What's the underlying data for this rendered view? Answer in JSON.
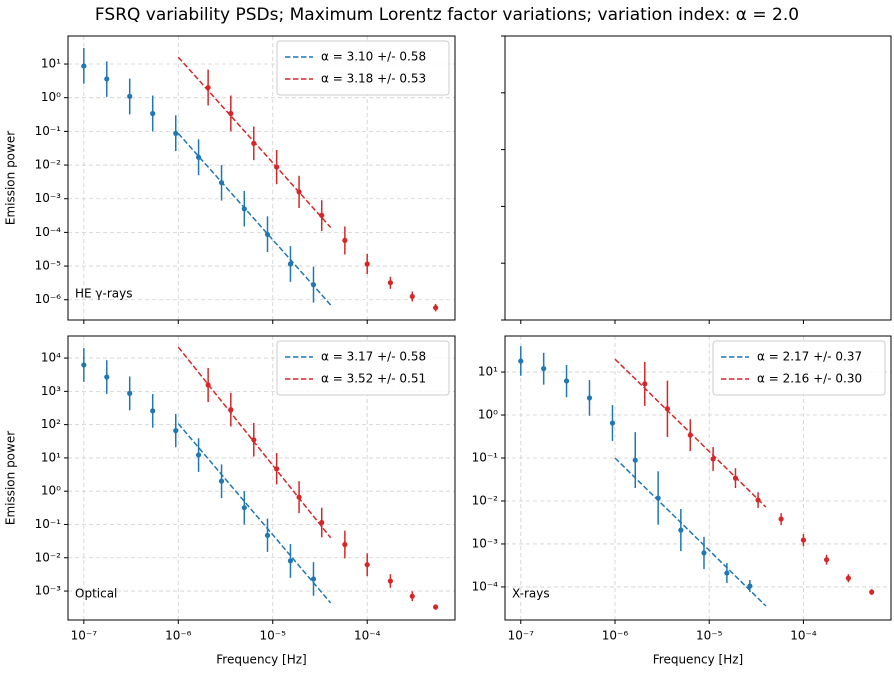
{
  "title": "FSRQ variability PSDs; Maximum Lorentz factor variations; variation index: α = 2.0",
  "chart_data": [
    {
      "type": "errorbar",
      "xscale": "log",
      "yscale": "log",
      "grid": true,
      "legend": "upper right",
      "ylabel": "Emission power",
      "annotation": "HE γ-rays",
      "xlim": [
        6.8e-08,
        0.00085
      ],
      "ylim": [
        2.5e-07,
        68
      ],
      "xticks": [
        1e-07,
        1e-06,
        1e-05,
        0.0001
      ],
      "yticks": [
        {
          "value": 1e-06,
          "label": "10⁻⁶"
        },
        {
          "value": 1e-05,
          "label": "10⁻⁵"
        },
        {
          "value": 0.0001,
          "label": "10⁻⁴"
        },
        {
          "value": 0.001,
          "label": "10⁻³"
        },
        {
          "value": 0.01,
          "label": "10⁻²"
        },
        {
          "value": 0.1,
          "label": "10⁻¹"
        },
        {
          "value": 1,
          "label": "10⁰"
        },
        {
          "value": 10,
          "label": "10¹"
        }
      ],
      "series": [
        {
          "name": "α = 3.10 +/- 0.58",
          "color": "#1f77b4",
          "x": [
            1e-06,
            4.1e-05
          ],
          "values": [
            0.087,
            7e-07
          ]
        },
        {
          "name": "α = 3.18 +/- 0.53",
          "color": "#d62728",
          "x": [
            1e-06,
            4.1e-05
          ],
          "values": [
            16,
            0.00014
          ]
        }
      ],
      "points": [
        {
          "color": "#1f77b4",
          "x": [
            1e-07,
            1.75e-07,
            3.06e-07,
            5.36e-07,
            9.4e-07,
            1.64e-06,
            2.87e-06,
            5e-06,
            8.8e-06,
            1.54e-05,
            2.7e-05
          ],
          "values": [
            8.7,
            3.6,
            1.1,
            0.34,
            0.087,
            0.017,
            0.003,
            0.0005,
            8.7e-05,
            1.15e-05,
            2.8e-06
          ],
          "lower": [
            2.6,
            1.06,
            0.32,
            0.1,
            0.026,
            0.005,
            0.00088,
            0.00015,
            2.6e-05,
            3.4e-06,
            8.2e-07
          ],
          "upper": [
            30,
            12,
            3.7,
            1.16,
            0.3,
            0.058,
            0.01,
            0.0017,
            0.0003,
            3.9e-05,
            9.5e-06
          ]
        },
        {
          "color": "#d62728",
          "x": [
            2.07e-06,
            3.6e-06,
            6.3e-06,
            1.1e-05,
            1.9e-05,
            3.3e-05,
            5.8e-05,
            0.0001,
            0.000176,
            0.0003,
            0.00053
          ],
          "values": [
            2.0,
            0.34,
            0.044,
            0.0087,
            0.0016,
            0.00032,
            5.8e-05,
            1.15e-05,
            3.2e-06,
            1.25e-06,
            5.8e-07
          ],
          "lower": [
            0.59,
            0.1,
            0.014,
            0.0027,
            0.00053,
            0.00011,
            2.2e-05,
            5.8e-06,
            2.1e-06,
            8.9e-07,
            4.5e-07
          ],
          "upper": [
            6.8,
            1.16,
            0.14,
            0.028,
            0.0048,
            0.0009,
            0.00015,
            2.3e-05,
            4.8e-06,
            1.75e-06,
            7.5e-07
          ]
        }
      ]
    },
    {
      "type": "empty",
      "xscale": "log",
      "yscale": "linear",
      "grid": false,
      "xlim": [
        6.8e-08,
        0.00085
      ],
      "ylim": [
        0,
        1
      ],
      "xticks": [
        1e-07,
        1e-06,
        1e-05,
        0.0001
      ],
      "yticks": [
        0,
        0.2,
        0.4,
        0.6,
        0.8,
        1
      ]
    },
    {
      "type": "errorbar",
      "xscale": "log",
      "yscale": "log",
      "grid": true,
      "legend": "upper right",
      "ylabel": "Emission power",
      "xlabel": "Frequency [Hz]",
      "annotation": "Optical",
      "xlim": [
        6.8e-08,
        0.00085
      ],
      "ylim": [
        0.000135,
        46000.0
      ],
      "xticks": [
        {
          "value": 1e-07,
          "label": "10⁻⁷"
        },
        {
          "value": 1e-06,
          "label": "10⁻⁶"
        },
        {
          "value": 1e-05,
          "label": "10⁻⁵"
        },
        {
          "value": 0.0001,
          "label": "10⁻⁴"
        }
      ],
      "yticks": [
        {
          "value": 0.001,
          "label": "10⁻³"
        },
        {
          "value": 0.01,
          "label": "10⁻²"
        },
        {
          "value": 0.1,
          "label": "10⁻¹"
        },
        {
          "value": 1,
          "label": "10⁰"
        },
        {
          "value": 10,
          "label": "10¹"
        },
        {
          "value": 100,
          "label": "10²"
        },
        {
          "value": 1000,
          "label": "10³"
        },
        {
          "value": 10000,
          "label": "10⁴"
        }
      ],
      "series": [
        {
          "name": "α = 3.17 +/- 0.58",
          "color": "#1f77b4",
          "x": [
            1e-06,
            4.1e-05
          ],
          "values": [
            107,
            0.00044
          ]
        },
        {
          "name": "α = 3.52 +/- 0.51",
          "color": "#d62728",
          "x": [
            1e-06,
            4.1e-05
          ],
          "values": [
            21400,
            0.04
          ]
        }
      ],
      "points": [
        {
          "color": "#1f77b4",
          "x": [
            1e-07,
            1.75e-07,
            3.06e-07,
            5.36e-07,
            9.4e-07,
            1.64e-06,
            2.87e-06,
            5e-06,
            8.8e-06,
            1.54e-05,
            2.7e-05
          ],
          "values": [
            6200,
            2700,
            870,
            260,
            66,
            12.3,
            2.0,
            0.32,
            0.047,
            0.0081,
            0.0023
          ],
          "lower": [
            1940,
            840,
            270,
            81,
            21,
            3.8,
            0.62,
            0.1,
            0.015,
            0.0025,
            0.00072
          ],
          "upper": [
            19800,
            8600,
            2800,
            830,
            210,
            39,
            6.4,
            1.0,
            0.15,
            0.026,
            0.0074
          ]
        },
        {
          "color": "#d62728",
          "x": [
            2.07e-06,
            3.6e-06,
            6.3e-06,
            1.1e-05,
            1.9e-05,
            3.3e-05,
            5.8e-05,
            0.0001,
            0.000176,
            0.0003,
            0.00053
          ],
          "values": [
            1550,
            280,
            35,
            4.7,
            0.66,
            0.115,
            0.025,
            0.0062,
            0.002,
            0.0007,
            0.00033
          ],
          "lower": [
            480,
            88,
            11,
            1.6,
            0.22,
            0.041,
            0.0096,
            0.0028,
            0.00125,
            0.0005,
            0.000275
          ],
          "upper": [
            5000,
            900,
            112,
            14,
            2.0,
            0.32,
            0.065,
            0.0136,
            0.0032,
            0.00098,
            0.0004
          ]
        }
      ]
    },
    {
      "type": "errorbar",
      "xscale": "log",
      "yscale": "log",
      "grid": true,
      "legend": "upper right",
      "xlabel": "Frequency [Hz]",
      "annotation": "X-rays",
      "xlim": [
        6.8e-08,
        0.00085
      ],
      "ylim": [
        1.7e-05,
        69
      ],
      "xticks": [
        {
          "value": 1e-07,
          "label": "10⁻⁷"
        },
        {
          "value": 1e-06,
          "label": "10⁻⁶"
        },
        {
          "value": 1e-05,
          "label": "10⁻⁵"
        },
        {
          "value": 0.0001,
          "label": "10⁻⁴"
        }
      ],
      "yticks": [
        {
          "value": 0.0001,
          "label": "10⁻⁴"
        },
        {
          "value": 0.001,
          "label": "10⁻³"
        },
        {
          "value": 0.01,
          "label": "10⁻²"
        },
        {
          "value": 0.1,
          "label": "10⁻¹"
        },
        {
          "value": 1,
          "label": "10⁰"
        },
        {
          "value": 10,
          "label": "10¹"
        }
      ],
      "series": [
        {
          "name": "α = 2.17 +/- 0.37",
          "color": "#1f77b4",
          "x": [
            1e-06,
            4e-05
          ],
          "values": [
            0.1,
            3.6e-05
          ]
        },
        {
          "name": "α = 2.16 +/- 0.30",
          "color": "#d62728",
          "x": [
            1e-06,
            4e-05
          ],
          "values": [
            20,
            0.0072
          ]
        }
      ],
      "points": [
        {
          "color": "#1f77b4",
          "x": [
            1e-07,
            1.75e-07,
            3.06e-07,
            5.36e-07,
            9.4e-07,
            1.64e-06,
            2.87e-06,
            5e-06,
            8.8e-06,
            1.54e-05,
            2.7e-05
          ],
          "values": [
            18,
            12,
            6.2,
            2.5,
            0.65,
            0.089,
            0.0117,
            0.0021,
            0.00062,
            0.00021,
            0.000105
          ],
          "lower": [
            8.2,
            5.1,
            2.6,
            0.96,
            0.25,
            0.02,
            0.0028,
            0.00068,
            0.00026,
            0.000124,
            7.6e-05
          ],
          "upper": [
            40,
            28,
            14.6,
            6.5,
            1.7,
            0.4,
            0.049,
            0.0065,
            0.00146,
            0.00036,
            0.000145
          ]
        },
        {
          "color": "#d62728",
          "x": [
            2.07e-06,
            3.6e-06,
            6.3e-06,
            1.1e-05,
            1.9e-05,
            3.3e-05,
            5.8e-05,
            0.0001,
            0.000176,
            0.0003,
            0.00053
          ],
          "values": [
            5.3,
            1.4,
            0.34,
            0.095,
            0.034,
            0.0105,
            0.0038,
            0.00123,
            0.00043,
            0.00016,
            7.6e-05
          ],
          "lower": [
            1.63,
            0.31,
            0.145,
            0.05,
            0.02,
            0.0069,
            0.00275,
            0.00089,
            0.00033,
            0.000129,
            6.5e-05
          ],
          "upper": [
            17.2,
            6.3,
            0.8,
            0.18,
            0.058,
            0.016,
            0.0052,
            0.0017,
            0.00056,
            0.000198,
            8.9e-05
          ]
        }
      ]
    }
  ]
}
